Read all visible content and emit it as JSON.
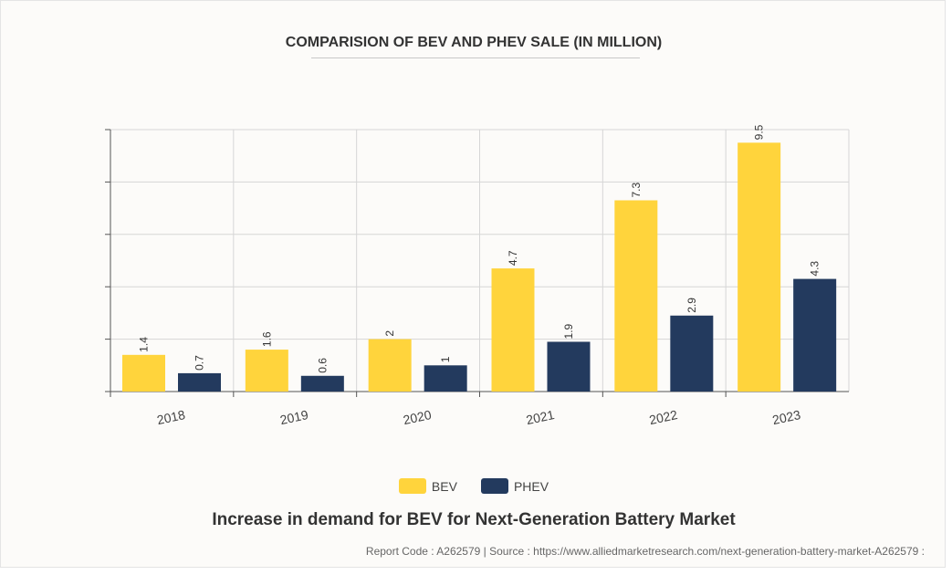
{
  "colors": {
    "bev": "#ffd43c",
    "phev": "#233a5e",
    "grid": "#d6d6d6",
    "axis": "#555555"
  },
  "chart_data": {
    "type": "bar",
    "title": "COMPARISION OF BEV AND PHEV SALE (IN MILLION)",
    "categories": [
      "2018",
      "2019",
      "2020",
      "2021",
      "2022",
      "2023"
    ],
    "series": [
      {
        "name": "BEV",
        "values": [
          1.4,
          1.6,
          2,
          4.7,
          7.3,
          9.5
        ],
        "labels": [
          "1.4",
          "1.6",
          "2",
          "4.7",
          "7.3",
          "9.5"
        ]
      },
      {
        "name": "PHEV",
        "values": [
          0.7,
          0.6,
          1,
          1.9,
          2.9,
          4.3
        ],
        "labels": [
          "0.7",
          "0.6",
          "1",
          "1.9",
          "2.9",
          "4.3"
        ]
      }
    ],
    "ylim": [
      0,
      10
    ],
    "grid": true,
    "legend": "bottom-center",
    "xlabel": "",
    "ylabel": ""
  },
  "caption": "Increase in demand for BEV for Next-Generation Battery Market",
  "footer": "Report Code : A262579  |  Source : https://www.alliedmarketresearch.com/next-generation-battery-market-A262579 :"
}
